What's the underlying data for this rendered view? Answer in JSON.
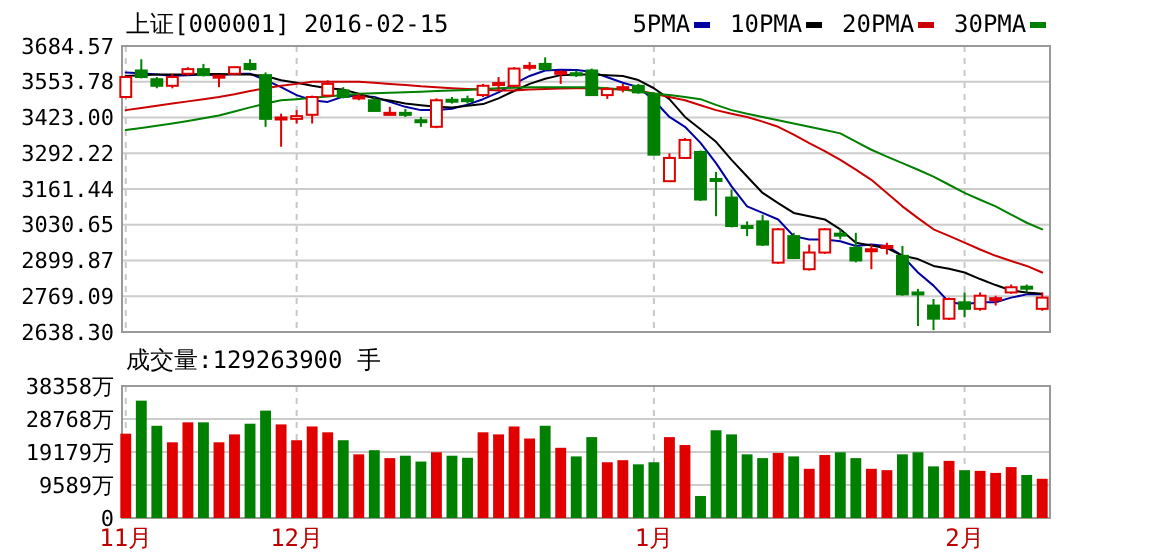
{
  "chart_data": [
    {
      "type": "candlestick",
      "title": "上证[000001] 2016-02-15",
      "categories": [
        null,
        null,
        null,
        null,
        null,
        null,
        null,
        null,
        null,
        null,
        null,
        null,
        null,
        null,
        null,
        null,
        null,
        null,
        null,
        null,
        null,
        null,
        null,
        null,
        null,
        null,
        null,
        null,
        null,
        null,
        null,
        null,
        null,
        null,
        null,
        null,
        null,
        null,
        null,
        null,
        null,
        null,
        null,
        null,
        null,
        null,
        null,
        null,
        null,
        null,
        null,
        null,
        null,
        null,
        null,
        null,
        null,
        null,
        null,
        null
      ],
      "ylim": [
        2638.3,
        3684.57
      ],
      "yticks": [
        {
          "value": 2638.3,
          "label": "2638.30"
        },
        2769.09,
        2899.87,
        3030.65,
        3161.44,
        3292.22,
        {
          "value": 3423,
          "label": "3423.00"
        },
        3553.78,
        3684.57
      ],
      "tick_labels": "y",
      "grid": true,
      "legend": "top right",
      "series": [
        {
          "type": "line",
          "name": "5PMA",
          "color": "#0000a0",
          "values": [
            3588,
            3585,
            3580,
            3576,
            3578,
            3580,
            3578,
            3583,
            3583,
            3560,
            3534,
            3505,
            3486,
            3480,
            3500,
            3503,
            3498,
            3480,
            3462,
            3450,
            3450,
            3455,
            3470,
            3490,
            3515,
            3546,
            3575,
            3595,
            3598,
            3597,
            3590,
            3570,
            3550,
            3534,
            3486,
            3425,
            3389,
            3330,
            3256,
            3171,
            3098,
            3074,
            3050,
            2989,
            2977,
            2977,
            2970,
            2953,
            2958,
            2953,
            2917,
            2856,
            2808,
            2747,
            2740,
            2747,
            2747,
            2764,
            2776,
            2776
          ]
        },
        {
          "type": "line",
          "name": "10PMA",
          "color": "#000000",
          "values": [
            3575,
            3578,
            3580,
            3580,
            3580,
            3582,
            3582,
            3580,
            3580,
            3575,
            3559,
            3550,
            3539,
            3530,
            3525,
            3510,
            3493,
            3485,
            3474,
            3468,
            3462,
            3460,
            3466,
            3472,
            3493,
            3520,
            3546,
            3565,
            3578,
            3580,
            3580,
            3578,
            3575,
            3560,
            3530,
            3490,
            3425,
            3380,
            3334,
            3268,
            3207,
            3147,
            3110,
            3074,
            3062,
            3050,
            3014,
            2965,
            2955,
            2945,
            2917,
            2905,
            2880,
            2870,
            2856,
            2832,
            2810,
            2790,
            2783,
            2778
          ]
        },
        {
          "type": "line",
          "name": "20PMA",
          "color": "#cc0000",
          "values": [
            3450,
            3458,
            3466,
            3474,
            3482,
            3490,
            3498,
            3508,
            3520,
            3530,
            3539,
            3546,
            3554,
            3554,
            3554,
            3554,
            3550,
            3546,
            3542,
            3537,
            3534,
            3530,
            3527,
            3525,
            3522,
            3522,
            3525,
            3527,
            3529,
            3530,
            3530,
            3527,
            3525,
            3522,
            3510,
            3498,
            3486,
            3468,
            3450,
            3437,
            3425,
            3408,
            3389,
            3360,
            3329,
            3300,
            3268,
            3232,
            3195,
            3147,
            3098,
            3055,
            3014,
            2990,
            2965,
            2940,
            2917,
            2898,
            2880,
            2856
          ]
        },
        {
          "type": "line",
          "name": "30PMA",
          "color": "#008000",
          "values": [
            3377,
            3385,
            3393,
            3401,
            3410,
            3420,
            3430,
            3445,
            3460,
            3474,
            3486,
            3490,
            3495,
            3500,
            3505,
            3510,
            3512,
            3514,
            3515,
            3517,
            3520,
            3522,
            3524,
            3527,
            3530,
            3532,
            3534,
            3534,
            3534,
            3534,
            3534,
            3530,
            3525,
            3518,
            3510,
            3505,
            3498,
            3490,
            3469,
            3450,
            3437,
            3425,
            3413,
            3401,
            3389,
            3377,
            3365,
            3335,
            3305,
            3280,
            3256,
            3232,
            3207,
            3177,
            3147,
            3122,
            3098,
            3068,
            3038,
            3014
          ]
        },
        {
          "type": "candlestick",
          "colors": [
            "#e00000",
            "#008000",
            "#008000",
            "#e00000",
            "#e00000",
            "#008000",
            "#e00000",
            "#e00000",
            "#008000",
            "#008000",
            "#e00000",
            "#e00000",
            "#e00000",
            "#e00000",
            "#008000",
            "#e00000",
            "#008000",
            "#e00000",
            "#008000",
            "#008000",
            "#e00000",
            "#008000",
            "#008000",
            "#e00000",
            "#e00000",
            "#e00000",
            "#e00000",
            "#008000",
            "#e00000",
            "#008000",
            "#008000",
            "#e00000",
            "#e00000",
            "#008000",
            "#008000",
            "#e00000",
            "#e00000",
            "#008000",
            "#008000",
            "#008000",
            "#008000",
            "#008000",
            "#e00000",
            "#008000",
            "#e00000",
            "#e00000",
            "#008000",
            "#008000",
            "#e00000",
            "#e00000",
            "#008000",
            "#008000",
            "#008000",
            "#e00000",
            "#008000",
            "#e00000",
            "#e00000",
            "#e00000",
            "#008000",
            "#e00000"
          ],
          "ohlc": [
            [
              3498,
              3576,
              3493,
              3571
            ],
            [
              3595,
              3636,
              3566,
              3571
            ],
            [
              3563,
              3571,
              3530,
              3539
            ],
            [
              3539,
              3583,
              3530,
              3571
            ],
            [
              3583,
              3607,
              3576,
              3600
            ],
            [
              3600,
              3619,
              3573,
              3578
            ],
            [
              3571,
              3578,
              3534,
              3576
            ],
            [
              3583,
              3609,
              3578,
              3607
            ],
            [
              3619,
              3636,
              3595,
              3600
            ],
            [
              3578,
              3588,
              3389,
              3418
            ],
            [
              3416,
              3437,
              3316,
              3423
            ],
            [
              3418,
              3450,
              3401,
              3428
            ],
            [
              3433,
              3503,
              3401,
              3498
            ],
            [
              3503,
              3559,
              3498,
              3546
            ],
            [
              3522,
              3534,
              3493,
              3498
            ],
            [
              3495,
              3510,
              3486,
              3500
            ],
            [
              3486,
              3498,
              3445,
              3447
            ],
            [
              3435,
              3462,
              3433,
              3440
            ],
            [
              3440,
              3454,
              3425,
              3435
            ],
            [
              3413,
              3425,
              3389,
              3408
            ],
            [
              3389,
              3493,
              3384,
              3486
            ],
            [
              3488,
              3498,
              3474,
              3484
            ],
            [
              3490,
              3503,
              3474,
              3486
            ],
            [
              3505,
              3546,
              3498,
              3539
            ],
            [
              3544,
              3571,
              3522,
              3549
            ],
            [
              3539,
              3607,
              3534,
              3602
            ],
            [
              3607,
              3626,
              3595,
              3612
            ],
            [
              3619,
              3643,
              3595,
              3600
            ],
            [
              3585,
              3595,
              3546,
              3590
            ],
            [
              3585,
              3595,
              3571,
              3580
            ],
            [
              3595,
              3602,
              3505,
              3505
            ],
            [
              3505,
              3534,
              3491,
              3527
            ],
            [
              3530,
              3546,
              3515,
              3534
            ],
            [
              3539,
              3546,
              3510,
              3515
            ],
            [
              3510,
              3515,
              3287,
              3287
            ],
            [
              3190,
              3292,
              3188,
              3275
            ],
            [
              3275,
              3348,
              3273,
              3341
            ],
            [
              3297,
              3302,
              3118,
              3123
            ],
            [
              3198,
              3224,
              3062,
              3193
            ],
            [
              3130,
              3159,
              3021,
              3026
            ],
            [
              3026,
              3043,
              2989,
              3021
            ],
            [
              3043,
              3067,
              2953,
              2958
            ],
            [
              2892,
              3018,
              2888,
              3014
            ],
            [
              2989,
              3001,
              2905,
              2909
            ],
            [
              2868,
              2958,
              2863,
              2929
            ],
            [
              2929,
              3018,
              2924,
              3014
            ],
            [
              2998,
              3014,
              2977,
              2993
            ],
            [
              2946,
              3001,
              2893,
              2900
            ],
            [
              2936,
              2958,
              2868,
              2941
            ],
            [
              2948,
              2965,
              2922,
              2953
            ],
            [
              2917,
              2953,
              2771,
              2776
            ],
            [
              2783,
              2796,
              2660,
              2778
            ],
            [
              2735,
              2759,
              2645,
              2687
            ],
            [
              2687,
              2764,
              2682,
              2759
            ],
            [
              2747,
              2783,
              2692,
              2723
            ],
            [
              2723,
              2783,
              2716,
              2771
            ],
            [
              2757,
              2771,
              2735,
              2762
            ],
            [
              2783,
              2812,
              2778,
              2802
            ],
            [
              2804,
              2812,
              2783,
              2800
            ],
            [
              2723,
              2783,
              2716,
              2764
            ]
          ]
        }
      ]
    },
    {
      "type": "bar",
      "title": "成交量:129263900 手",
      "categories": [
        "11月",
        null,
        null,
        null,
        null,
        null,
        null,
        null,
        null,
        null,
        null,
        "12月",
        null,
        null,
        null,
        null,
        null,
        null,
        null,
        null,
        null,
        null,
        null,
        null,
        null,
        null,
        null,
        null,
        null,
        null,
        null,
        null,
        null,
        null,
        "1月",
        null,
        null,
        null,
        null,
        null,
        null,
        null,
        null,
        null,
        null,
        null,
        null,
        null,
        null,
        null,
        null,
        null,
        null,
        null,
        "2月",
        null,
        null,
        null,
        null,
        null
      ],
      "ylim": [
        0,
        38358
      ],
      "yticks": [
        0,
        {
          "value": 9589,
          "label": "9589万"
        },
        {
          "value": 19179,
          "label": "19179万"
        },
        {
          "value": 28768,
          "label": "28768万"
        },
        {
          "value": 38358,
          "label": "38358万"
        }
      ],
      "grid": true,
      "values": [
        24500,
        34100,
        26800,
        22000,
        27800,
        27800,
        22000,
        24300,
        27400,
        31200,
        27200,
        22600,
        26600,
        24900,
        22600,
        18500,
        19700,
        17400,
        18100,
        16400,
        19100,
        18100,
        17500,
        24900,
        24300,
        26600,
        23100,
        26800,
        20400,
        17900,
        23500,
        16200,
        16800,
        15600,
        16200,
        23500,
        21200,
        6400,
        25500,
        24300,
        18500,
        17400,
        18900,
        17900,
        14300,
        18300,
        19100,
        17400,
        14300,
        13900,
        18500,
        19100,
        15000,
        16600,
        13900,
        13700,
        13100,
        14800,
        12500,
        11400
      ],
      "colors": [
        "#e00000",
        "#008000",
        "#008000",
        "#e00000",
        "#e00000",
        "#008000",
        "#e00000",
        "#e00000",
        "#008000",
        "#008000",
        "#e00000",
        "#e00000",
        "#e00000",
        "#e00000",
        "#008000",
        "#e00000",
        "#008000",
        "#e00000",
        "#008000",
        "#008000",
        "#e00000",
        "#008000",
        "#008000",
        "#e00000",
        "#e00000",
        "#e00000",
        "#e00000",
        "#008000",
        "#e00000",
        "#008000",
        "#008000",
        "#e00000",
        "#e00000",
        "#008000",
        "#008000",
        "#e00000",
        "#e00000",
        "#008000",
        "#008000",
        "#008000",
        "#008000",
        "#008000",
        "#e00000",
        "#008000",
        "#e00000",
        "#e00000",
        "#008000",
        "#008000",
        "#e00000",
        "#e00000",
        "#008000",
        "#008000",
        "#008000",
        "#e00000",
        "#008000",
        "#e00000",
        "#e00000",
        "#e00000",
        "#008000",
        "#e00000"
      ]
    }
  ]
}
